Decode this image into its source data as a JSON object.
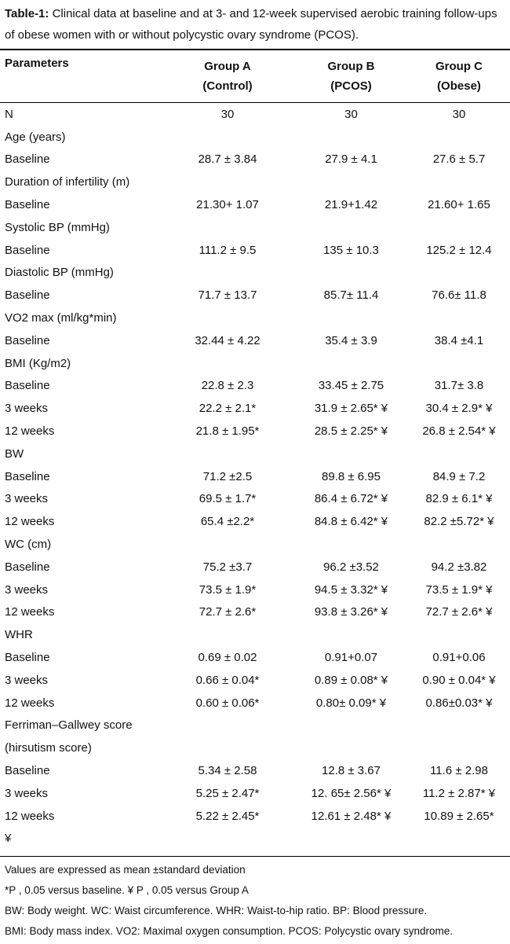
{
  "title": {
    "label": "Table-1:",
    "text": "Clinical data at baseline and at 3- and 12-week supervised aerobic training follow-ups of obese women with or without polycystic ovary syndrome (PCOS)."
  },
  "table": {
    "header": [
      [
        "Parameters"
      ],
      [
        "Group A",
        "(Control)"
      ],
      [
        "Group B",
        "(PCOS)"
      ],
      [
        "Group C",
        "(Obese)"
      ]
    ],
    "rows": [
      [
        "N",
        "30",
        "30",
        "30"
      ],
      [
        "Age (years)"
      ],
      [
        "Baseline",
        "28.7 ± 3.84",
        "27.9 ± 4.1",
        "27.6 ± 5.7"
      ],
      [
        "Duration of infertility (m)"
      ],
      [
        "Baseline",
        "21.30+ 1.07",
        "21.9+1.42",
        "21.60+ 1.65"
      ],
      [
        "Systolic BP (mmHg)"
      ],
      [
        "Baseline",
        "111.2 ± 9.5",
        "135 ± 10.3",
        "125.2 ± 12.4"
      ],
      [
        "Diastolic BP (mmHg)"
      ],
      [
        "Baseline",
        "71.7 ± 13.7",
        "85.7± 11.4",
        "76.6± 11.8"
      ],
      [
        "VO2 max (ml/kg*min)"
      ],
      [
        "Baseline",
        "32.44 ± 4.22",
        "35.4 ± 3.9",
        "38.4 ±4.1"
      ],
      [
        "BMI (Kg/m2)"
      ],
      [
        "Baseline",
        "22.8 ± 2.3",
        "33.45 ± 2.75",
        "31.7± 3.8"
      ],
      [
        "3 weeks",
        "22.2 ± 2.1*",
        "31.9 ± 2.65* ¥",
        "30.4 ± 2.9* ¥"
      ],
      [
        "12 weeks",
        "21.8 ± 1.95*",
        "28.5 ± 2.25* ¥",
        "26.8 ± 2.54* ¥"
      ],
      [
        "BW"
      ],
      [
        "Baseline",
        "71.2 ±2.5",
        "89.8 ± 6.95",
        "84.9 ± 7.2"
      ],
      [
        "3 weeks",
        "69.5 ± 1.7*",
        "86.4 ± 6.72* ¥",
        "82.9 ± 6.1* ¥"
      ],
      [
        "12 weeks",
        "65.4 ±2.2*",
        "84.8 ± 6.42* ¥",
        "82.2 ±5.72* ¥"
      ],
      [
        "WC (cm)"
      ],
      [
        "Baseline",
        "75.2 ±3.7",
        "96.2 ±3.52",
        "94.2 ±3.82"
      ],
      [
        "3 weeks",
        "73.5 ± 1.9*",
        "94.5 ± 3.32* ¥",
        "73.5 ± 1.9* ¥"
      ],
      [
        "12 weeks",
        "72.7 ± 2.6*",
        "93.8 ± 3.26* ¥",
        "72.7 ± 2.6* ¥"
      ],
      [
        "WHR"
      ],
      [
        "Baseline",
        "0.69 ± 0.02",
        "0.91+0.07",
        "0.91+0.06"
      ],
      [
        "3 weeks",
        "0.66 ± 0.04*",
        "0.89 ± 0.08* ¥",
        "0.90 ± 0.04* ¥"
      ],
      [
        "12 weeks",
        "0.60 ± 0.06*",
        "0.80± 0.09* ¥",
        "0.86±0.03* ¥"
      ],
      [
        "Ferriman–Gallwey score"
      ],
      [
        "(hirsutism score)"
      ],
      [
        "Baseline",
        "5.34 ± 2.58",
        "12.8 ± 3.67",
        "11.6 ± 2.98"
      ],
      [
        "3 weeks",
        "5.25 ± 2.47*",
        "12. 65± 2.56* ¥",
        "11.2 ± 2.87* ¥"
      ],
      [
        "12 weeks",
        "5.22 ± 2.45*",
        "12.61 ± 2.48* ¥",
        "10.89 ± 2.65*"
      ],
      [
        "¥"
      ]
    ]
  },
  "footnotes": [
    "Values are expressed as mean ±standard deviation",
    "*P , 0.05 versus baseline. ¥ P , 0.05 versus Group A",
    "BW: Body weight. WC: Waist circumference. WHR: Waist-to-hip ratio. BP: Blood pressure.",
    "BMI: Body mass index. VO2: Maximal oxygen consumption. PCOS: Polycystic ovary syndrome."
  ]
}
